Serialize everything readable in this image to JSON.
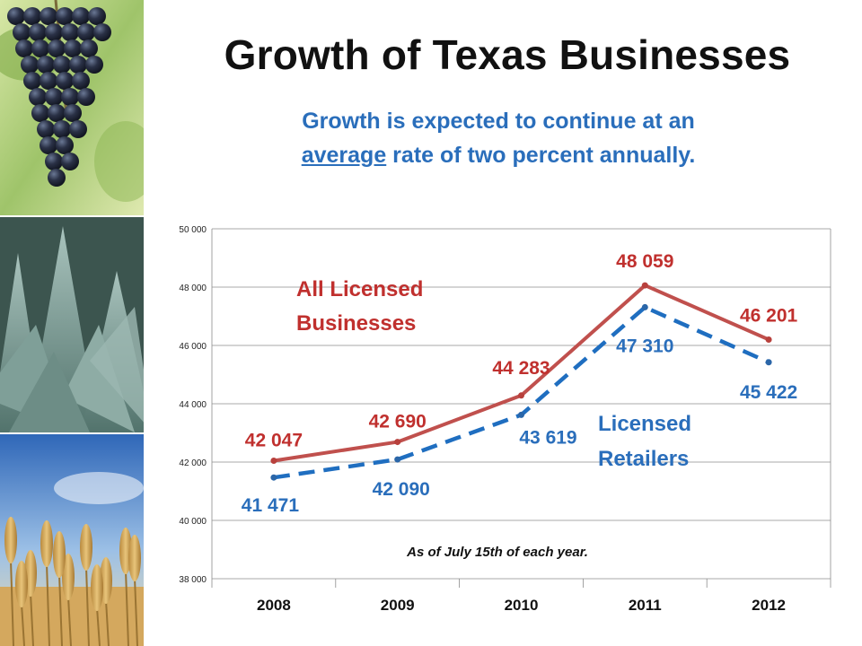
{
  "title": "Growth of Texas Businesses",
  "subtitle": {
    "line1": "Growth is expected to continue at an",
    "line2_underlined": "average",
    "line2_rest": " rate of two percent annually."
  },
  "colors": {
    "all_licensed": "#c0504d",
    "licensed_retailers": "#1f6ec0",
    "label_red": "#c0302e",
    "label_blue": "#2a6ebb"
  },
  "chart_data": {
    "type": "line",
    "categories": [
      "2008",
      "2009",
      "2010",
      "2011",
      "2012"
    ],
    "ylim": [
      38000,
      50000
    ],
    "yticks": [
      "38 000",
      "40 000",
      "42 000",
      "44 000",
      "46 000",
      "48 000",
      "50 000"
    ],
    "ytick_values": [
      38000,
      40000,
      42000,
      44000,
      46000,
      48000,
      50000
    ],
    "grid": true,
    "series": [
      {
        "name": "All Licensed Businesses",
        "name_lines": [
          "All Licensed",
          "Businesses"
        ],
        "style": "solid",
        "values": [
          42047,
          42690,
          44283,
          48059,
          46201
        ],
        "labels": [
          "42 047",
          "42 690",
          "44 283",
          "48 059",
          "46 201"
        ]
      },
      {
        "name": "Licensed Retailers",
        "name_lines": [
          "Licensed",
          "Retailers"
        ],
        "style": "dashed",
        "values": [
          41471,
          42090,
          43619,
          47310,
          45422
        ],
        "labels": [
          "41 471",
          "42 090",
          "43 619",
          "47 310",
          "45 422"
        ]
      }
    ],
    "annotation": "As of July 15th of each year."
  }
}
